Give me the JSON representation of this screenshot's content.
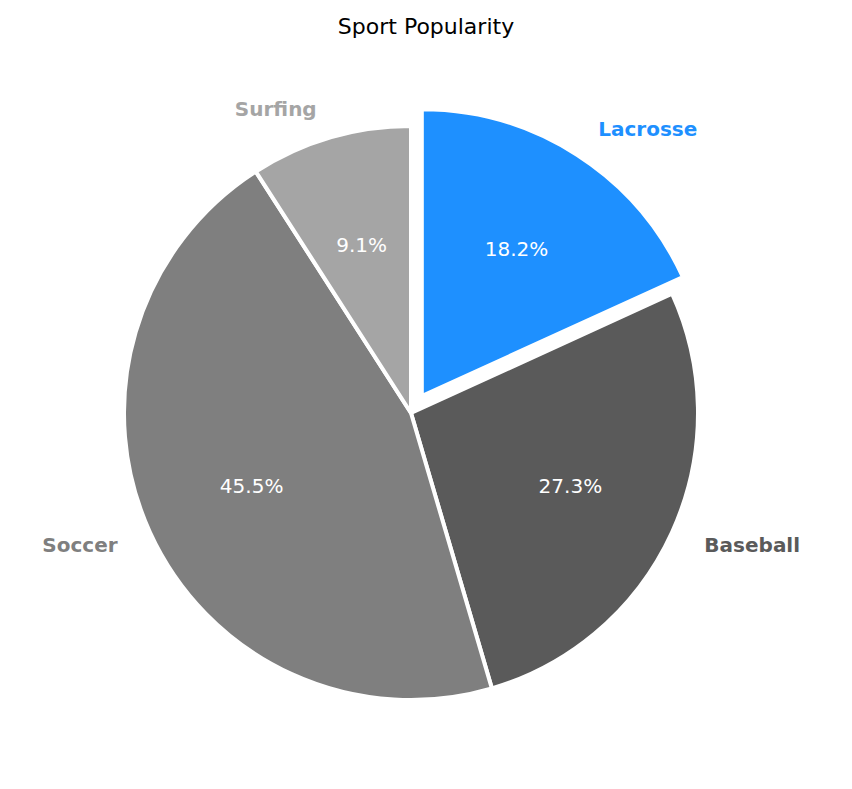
{
  "chart_data": {
    "type": "pie",
    "title": "Sport Popularity",
    "categories": [
      "Lacrosse",
      "Baseball",
      "Soccer",
      "Surfing"
    ],
    "values": [
      18.2,
      27.3,
      45.5,
      9.1
    ],
    "value_labels": [
      "18.2%",
      "27.3%",
      "45.5%",
      "9.1%"
    ],
    "colors": [
      "#1e90ff",
      "#5a5a5a",
      "#7f7f7f",
      "#a5a5a5"
    ],
    "data_labels": true
  }
}
